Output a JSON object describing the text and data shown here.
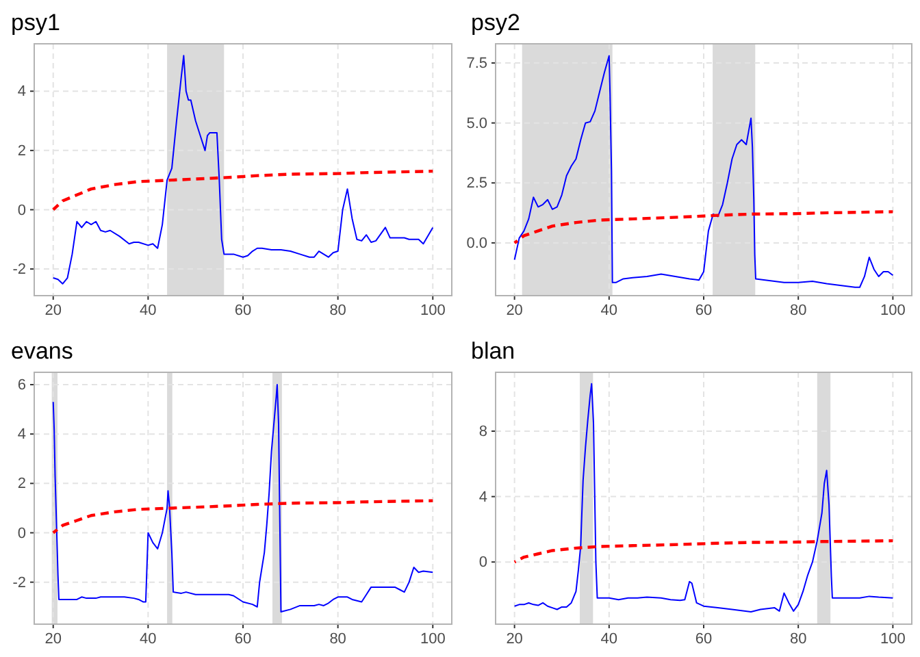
{
  "chart_data": [
    {
      "type": "line",
      "title": "psy1",
      "xlim": [
        16,
        104
      ],
      "xticks": [
        20,
        40,
        60,
        80,
        100
      ],
      "ylim": [
        -2.9,
        5.6
      ],
      "yticks": [
        -2,
        0,
        2,
        4
      ],
      "grid": true,
      "bands": [
        {
          "axis": "x",
          "from": 44,
          "to": 56,
          "color": "#dadada"
        }
      ],
      "series": [
        {
          "color": "#0000ff",
          "line_style": "solid",
          "x": [
            20,
            21,
            22,
            23,
            24,
            25,
            26,
            27,
            28,
            29,
            30,
            31,
            32,
            34,
            36,
            37,
            38,
            40,
            41,
            42,
            43,
            44,
            45,
            46,
            47,
            47.5,
            48,
            48.5,
            49,
            50,
            51,
            52,
            52.5,
            53,
            54.5,
            55,
            55.5,
            56,
            58,
            60,
            61,
            62,
            63,
            64,
            66,
            68,
            70,
            72,
            74,
            75,
            76,
            77,
            78,
            79,
            80,
            81,
            82,
            83,
            84,
            85,
            86,
            87,
            88,
            90,
            91,
            94,
            95,
            97,
            98,
            100
          ],
          "values": [
            -2.3,
            -2.35,
            -2.5,
            -2.3,
            -1.5,
            -0.4,
            -0.6,
            -0.4,
            -0.5,
            -0.4,
            -0.7,
            -0.75,
            -0.7,
            -0.9,
            -1.15,
            -1.1,
            -1.1,
            -1.2,
            -1.15,
            -1.3,
            -0.5,
            1.0,
            1.4,
            3.0,
            4.5,
            5.2,
            4.0,
            3.7,
            3.7,
            3.0,
            2.5,
            2.0,
            2.5,
            2.6,
            2.6,
            1.0,
            -1.0,
            -1.5,
            -1.5,
            -1.6,
            -1.55,
            -1.4,
            -1.3,
            -1.3,
            -1.35,
            -1.35,
            -1.4,
            -1.5,
            -1.6,
            -1.6,
            -1.4,
            -1.5,
            -1.6,
            -1.45,
            -1.4,
            0,
            0.7,
            -0.3,
            -1.0,
            -1.05,
            -0.85,
            -1.1,
            -1.05,
            -0.6,
            -0.95,
            -0.95,
            -1.0,
            -1.0,
            -1.15,
            -0.6
          ]
        },
        {
          "color": "#ff0000",
          "line_style": "dashed",
          "x": [
            20,
            22,
            25,
            28,
            33,
            38,
            45,
            52,
            58,
            63,
            70,
            80,
            85,
            100
          ],
          "values": [
            0,
            0.3,
            0.5,
            0.7,
            0.85,
            0.95,
            1.0,
            1.05,
            1.1,
            1.15,
            1.2,
            1.22,
            1.25,
            1.3
          ]
        }
      ]
    },
    {
      "type": "line",
      "title": "psy2",
      "xlim": [
        16,
        104
      ],
      "xticks": [
        20,
        40,
        60,
        80,
        100
      ],
      "ylim": [
        -2.2,
        8.3
      ],
      "yticks": [
        {
          "value": 0,
          "label": "0.0"
        },
        {
          "value": 2.5,
          "label": "2.5"
        },
        {
          "value": 5,
          "label": "5.0"
        },
        {
          "value": 7.5,
          "label": "7.5"
        }
      ],
      "grid": true,
      "bands": [
        {
          "axis": "x",
          "from": 21.6,
          "to": 40.7,
          "color": "#dadada"
        },
        {
          "axis": "x",
          "from": 61.9,
          "to": 70.9,
          "color": "#dadada"
        }
      ],
      "series": [
        {
          "color": "#0000ff",
          "line_style": "solid",
          "x": [
            20,
            21,
            22,
            23,
            24,
            25,
            26,
            27,
            28,
            29,
            30,
            31,
            32,
            33,
            34,
            35,
            36,
            37,
            38,
            39,
            40,
            40.2,
            40.5,
            40.7,
            41.5,
            43,
            45,
            48,
            51,
            54,
            57,
            59,
            60,
            61,
            62,
            63,
            64,
            65,
            66,
            67,
            68,
            69,
            70,
            70.3,
            70.6,
            70.8,
            71,
            73,
            77,
            80,
            83,
            86,
            90,
            92,
            93,
            94,
            95,
            96,
            97,
            98,
            99,
            100
          ],
          "values": [
            -0.7,
            0.2,
            0.5,
            1.0,
            1.9,
            1.5,
            1.6,
            1.8,
            1.4,
            1.5,
            2.0,
            2.8,
            3.2,
            3.5,
            4.3,
            5.0,
            5.05,
            5.5,
            6.3,
            7.1,
            7.8,
            6.2,
            3.0,
            -1.65,
            -1.65,
            -1.5,
            -1.45,
            -1.4,
            -1.3,
            -1.4,
            -1.5,
            -1.55,
            -1.2,
            0.5,
            1.2,
            1.1,
            1.6,
            2.5,
            3.5,
            4.1,
            4.3,
            4.1,
            5.2,
            4.0,
            1.8,
            -0.5,
            -1.5,
            -1.55,
            -1.65,
            -1.65,
            -1.6,
            -1.7,
            -1.8,
            -1.85,
            -1.85,
            -1.4,
            -0.6,
            -1.1,
            -1.4,
            -1.2,
            -1.2,
            -1.35
          ]
        },
        {
          "color": "#ff0000",
          "line_style": "dashed",
          "x": [
            20,
            22,
            25,
            28,
            33,
            38,
            45,
            52,
            58,
            63,
            70,
            80,
            85,
            100
          ],
          "values": [
            0,
            0.3,
            0.5,
            0.7,
            0.85,
            0.95,
            1.0,
            1.05,
            1.1,
            1.15,
            1.2,
            1.22,
            1.25,
            1.3
          ]
        }
      ]
    },
    {
      "type": "line",
      "title": "evans",
      "xlim": [
        16,
        104
      ],
      "xticks": [
        20,
        40,
        60,
        80,
        100
      ],
      "ylim": [
        -3.7,
        6.5
      ],
      "yticks": [
        -2,
        0,
        2,
        4,
        6
      ],
      "grid": true,
      "bands": [
        {
          "axis": "x",
          "from": 19.7,
          "to": 20.9,
          "color": "#dadada"
        },
        {
          "axis": "x",
          "from": 44,
          "to": 45.1,
          "color": "#dadada"
        },
        {
          "axis": "x",
          "from": 66.2,
          "to": 68.2,
          "color": "#dadada"
        }
      ],
      "series": [
        {
          "color": "#0000ff",
          "line_style": "solid",
          "x": [
            20,
            20.2,
            20.4,
            20.7,
            21,
            21.2,
            25,
            26,
            27,
            29,
            30,
            35,
            37,
            38,
            39,
            39.5,
            40,
            41,
            42,
            43,
            44,
            44.2,
            44.5,
            45,
            45.3,
            47,
            48,
            50,
            54,
            57,
            58,
            60,
            62,
            63,
            63.5,
            64.5,
            65,
            65.5,
            66,
            66.5,
            67,
            67.2,
            67.5,
            68,
            70,
            72,
            75,
            76,
            77,
            78,
            79,
            80,
            82,
            83,
            85,
            86,
            87,
            90,
            92,
            93,
            94,
            95,
            96,
            97,
            98,
            100
          ],
          "values": [
            5.3,
            4.2,
            2.3,
            0.3,
            -1.7,
            -2.7,
            -2.7,
            -2.6,
            -2.65,
            -2.65,
            -2.6,
            -2.6,
            -2.65,
            -2.7,
            -2.8,
            -2.8,
            0,
            -0.4,
            -0.65,
            0,
            1.0,
            1.7,
            1.1,
            -0.8,
            -2.4,
            -2.45,
            -2.4,
            -2.5,
            -2.5,
            -2.5,
            -2.55,
            -2.8,
            -2.9,
            -3.0,
            -2.0,
            -0.8,
            0.3,
            1.6,
            3.3,
            4.4,
            5.5,
            6.0,
            4.4,
            -3.2,
            -3.1,
            -2.95,
            -2.95,
            -2.9,
            -2.95,
            -2.85,
            -2.7,
            -2.6,
            -2.6,
            -2.7,
            -2.8,
            -2.5,
            -2.2,
            -2.2,
            -2.2,
            -2.3,
            -2.4,
            -2.0,
            -1.4,
            -1.6,
            -1.55,
            -1.6
          ]
        },
        {
          "color": "#ff0000",
          "line_style": "dashed",
          "x": [
            20,
            22,
            25,
            28,
            33,
            38,
            45,
            52,
            58,
            63,
            70,
            80,
            85,
            100
          ],
          "values": [
            0,
            0.3,
            0.5,
            0.7,
            0.85,
            0.95,
            1.0,
            1.05,
            1.1,
            1.15,
            1.2,
            1.22,
            1.25,
            1.3
          ]
        }
      ]
    },
    {
      "type": "line",
      "title": "blan",
      "xlim": [
        16,
        104
      ],
      "xticks": [
        20,
        40,
        60,
        80,
        100
      ],
      "ylim": [
        -3.8,
        11.6
      ],
      "yticks": [
        0,
        4,
        8
      ],
      "grid": true,
      "bands": [
        {
          "axis": "x",
          "from": 33.8,
          "to": 36.6,
          "color": "#dadada"
        },
        {
          "axis": "x",
          "from": 84,
          "to": 86.8,
          "color": "#dadada"
        }
      ],
      "series": [
        {
          "color": "#0000ff",
          "line_style": "solid",
          "x": [
            20,
            21,
            22,
            23,
            24,
            25,
            26,
            27,
            28,
            29,
            30,
            31,
            32,
            33,
            33.5,
            34,
            34.2,
            34.5,
            35,
            35.5,
            36,
            36.3,
            36.7,
            37.2,
            37.5,
            40,
            42,
            44,
            46,
            48,
            51,
            53,
            55,
            56,
            57,
            57.5,
            58.5,
            60,
            63,
            66,
            70,
            72,
            75,
            76,
            77,
            78,
            79,
            80,
            81,
            82,
            83,
            84,
            85,
            85.5,
            86,
            86.5,
            87,
            87.2,
            90,
            93,
            95,
            97,
            100
          ],
          "values": [
            -2.7,
            -2.6,
            -2.6,
            -2.5,
            -2.6,
            -2.65,
            -2.5,
            -2.7,
            -2.8,
            -2.9,
            -2.75,
            -2.75,
            -2.5,
            -1.8,
            -0.5,
            1.0,
            2.7,
            5.0,
            7.0,
            8.7,
            10.2,
            10.9,
            8.5,
            0,
            -2.2,
            -2.2,
            -2.3,
            -2.2,
            -2.2,
            -2.15,
            -2.2,
            -2.3,
            -2.35,
            -2.3,
            -1.2,
            -1.3,
            -2.5,
            -2.7,
            -2.8,
            -2.9,
            -3.05,
            -2.9,
            -2.8,
            -3.0,
            -1.9,
            -2.5,
            -3.0,
            -2.6,
            -1.8,
            -0.8,
            0,
            1.3,
            3.0,
            4.8,
            5.6,
            3.5,
            -0.9,
            -2.2,
            -2.2,
            -2.2,
            -2.1,
            -2.15,
            -2.2
          ]
        },
        {
          "color": "#ff0000",
          "line_style": "dashed",
          "x": [
            20,
            22,
            25,
            28,
            33,
            38,
            45,
            52,
            58,
            63,
            70,
            80,
            85,
            100
          ],
          "values": [
            0,
            0.3,
            0.5,
            0.7,
            0.85,
            0.95,
            1.0,
            1.05,
            1.1,
            1.15,
            1.2,
            1.22,
            1.25,
            1.3
          ]
        }
      ]
    }
  ]
}
